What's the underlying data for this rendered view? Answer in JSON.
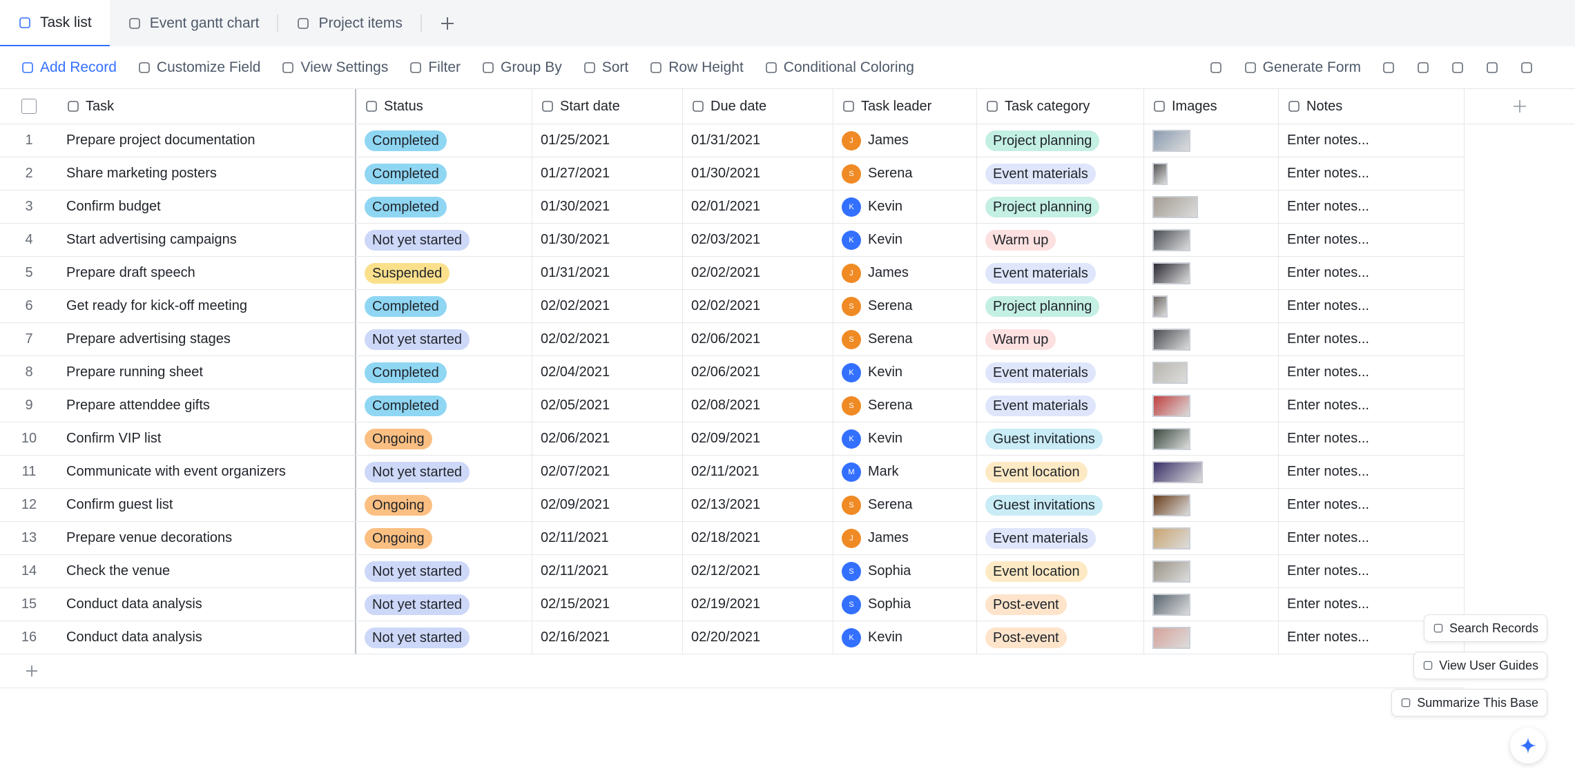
{
  "tabs": [
    {
      "label": "Task list"
    },
    {
      "label": "Event gantt chart"
    },
    {
      "label": "Project items"
    }
  ],
  "toolbar": {
    "left": [
      "Add Record",
      "Customize Field",
      "View Settings",
      "Filter",
      "Group By",
      "Sort",
      "Row Height",
      "Conditional Coloring"
    ],
    "right": [
      "Generate Form"
    ]
  },
  "columns": [
    "Task",
    "Status",
    "Start date",
    "Due date",
    "Task leader",
    "Task category",
    "Images",
    "Notes"
  ],
  "status_options": [
    {
      "name": "Completed",
      "color": "#8fd6f3"
    },
    {
      "name": "Not yet started",
      "color": "#cdd8f8"
    },
    {
      "name": "Suspended",
      "color": "#fbe08c"
    },
    {
      "name": "Ongoing",
      "color": "#fbbf82"
    }
  ],
  "category_options": [
    {
      "name": "Project planning",
      "color": "#c4efe3"
    },
    {
      "name": "Event materials",
      "color": "#dfe6fb"
    },
    {
      "name": "Warm up",
      "color": "#fde0e0"
    },
    {
      "name": "Guest invitations",
      "color": "#c9ecf6"
    },
    {
      "name": "Event location",
      "color": "#fdeac4"
    },
    {
      "name": "Post-event",
      "color": "#fde4ca"
    }
  ],
  "notes_placeholder": "Enter notes...",
  "rows": [
    {
      "index": 1,
      "task": "Prepare project documentation",
      "status": "Completed",
      "start": "01/25/2021",
      "due": "01/31/2021",
      "leader": {
        "initial": "J",
        "name": "James",
        "color": "#f08a24"
      },
      "category": "Project planning"
    },
    {
      "index": 2,
      "task": "Share marketing posters",
      "status": "Completed",
      "start": "01/27/2021",
      "due": "01/30/2021",
      "leader": {
        "initial": "S",
        "name": "Serena",
        "color": "#f08a24"
      },
      "category": "Event materials"
    },
    {
      "index": 3,
      "task": "Confirm budget",
      "status": "Completed",
      "start": "01/30/2021",
      "due": "02/01/2021",
      "leader": {
        "initial": "K",
        "name": "Kevin",
        "color": "#3370ff"
      },
      "category": "Project planning"
    },
    {
      "index": 4,
      "task": "Start advertising campaigns",
      "status": "Not yet started",
      "start": "01/30/2021",
      "due": "02/03/2021",
      "leader": {
        "initial": "K",
        "name": "Kevin",
        "color": "#3370ff"
      },
      "category": "Warm up"
    },
    {
      "index": 5,
      "task": "Prepare draft speech",
      "status": "Suspended",
      "start": "01/31/2021",
      "due": "02/02/2021",
      "leader": {
        "initial": "J",
        "name": "James",
        "color": "#f08a24"
      },
      "category": "Event materials"
    },
    {
      "index": 6,
      "task": "Get ready for kick-off meeting",
      "status": "Completed",
      "start": "02/02/2021",
      "due": "02/02/2021",
      "leader": {
        "initial": "S",
        "name": "Serena",
        "color": "#f08a24"
      },
      "category": "Project planning"
    },
    {
      "index": 7,
      "task": "Prepare advertising stages",
      "status": "Not yet started",
      "start": "02/02/2021",
      "due": "02/06/2021",
      "leader": {
        "initial": "S",
        "name": "Serena",
        "color": "#f08a24"
      },
      "category": "Warm up"
    },
    {
      "index": 8,
      "task": "Prepare running sheet",
      "status": "Completed",
      "start": "02/04/2021",
      "due": "02/06/2021",
      "leader": {
        "initial": "K",
        "name": "Kevin",
        "color": "#3370ff"
      },
      "category": "Event materials"
    },
    {
      "index": 9,
      "task": "Prepare attenddee gifts",
      "status": "Completed",
      "start": "02/05/2021",
      "due": "02/08/2021",
      "leader": {
        "initial": "S",
        "name": "Serena",
        "color": "#f08a24"
      },
      "category": "Event materials"
    },
    {
      "index": 10,
      "task": "Confirm VIP list",
      "status": "Ongoing",
      "start": "02/06/2021",
      "due": "02/09/2021",
      "leader": {
        "initial": "K",
        "name": "Kevin",
        "color": "#3370ff"
      },
      "category": "Guest invitations"
    },
    {
      "index": 11,
      "task": "Communicate with event organizers",
      "status": "Not yet started",
      "start": "02/07/2021",
      "due": "02/11/2021",
      "leader": {
        "initial": "M",
        "name": "Mark",
        "color": "#3370ff"
      },
      "category": "Event location"
    },
    {
      "index": 12,
      "task": "Confirm guest list",
      "status": "Ongoing",
      "start": "02/09/2021",
      "due": "02/13/2021",
      "leader": {
        "initial": "S",
        "name": "Serena",
        "color": "#f08a24"
      },
      "category": "Guest invitations"
    },
    {
      "index": 13,
      "task": "Prepare venue decorations",
      "status": "Ongoing",
      "start": "02/11/2021",
      "due": "02/18/2021",
      "leader": {
        "initial": "J",
        "name": "James",
        "color": "#f08a24"
      },
      "category": "Event materials"
    },
    {
      "index": 14,
      "task": "Check the venue",
      "status": "Not yet started",
      "start": "02/11/2021",
      "due": "02/12/2021",
      "leader": {
        "initial": "S",
        "name": "Sophia",
        "color": "#3370ff"
      },
      "category": "Event location"
    },
    {
      "index": 15,
      "task": "Conduct data analysis",
      "status": "Not yet started",
      "start": "02/15/2021",
      "due": "02/19/2021",
      "leader": {
        "initial": "S",
        "name": "Sophia",
        "color": "#3370ff"
      },
      "category": "Post-event"
    },
    {
      "index": 16,
      "task": "Conduct data analysis",
      "status": "Not yet started",
      "start": "02/16/2021",
      "due": "02/20/2021",
      "leader": {
        "initial": "K",
        "name": "Kevin",
        "color": "#3370ff"
      },
      "category": "Post-event"
    }
  ],
  "floating": [
    "Search Records",
    "View User Guides",
    "Summarize This Base"
  ]
}
